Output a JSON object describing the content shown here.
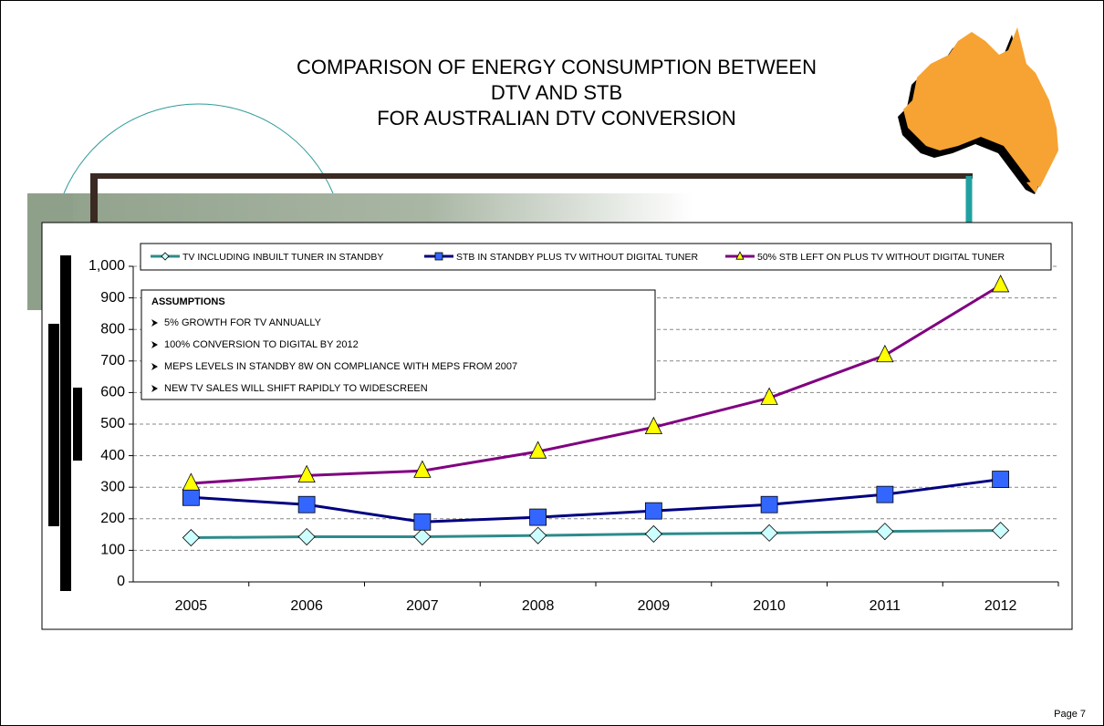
{
  "chart_data": {
    "type": "line",
    "title": [
      "COMPARISON OF ENERGY CONSUMPTION BETWEEN",
      "DTV AND STB",
      "FOR AUSTRALIAN DTV CONVERSION"
    ],
    "categories": [
      "2005",
      "2006",
      "2007",
      "2008",
      "2009",
      "2010",
      "2011",
      "2012"
    ],
    "series": [
      {
        "name": "TV INCLUDING INBUILT TUNER IN STANDBY",
        "color": "#2e8b8b",
        "marker": "diamond",
        "marker_color": "#ccffff",
        "values": [
          140,
          143,
          143,
          147,
          152,
          155,
          160,
          163
        ]
      },
      {
        "name": "STB IN STANDBY PLUS TV WITHOUT DIGITAL TUNER",
        "color": "#000080",
        "marker": "square",
        "marker_color": "#3366ff",
        "values": [
          268,
          245,
          190,
          205,
          225,
          245,
          277,
          325
        ]
      },
      {
        "name": "50% STB LEFT ON PLUS TV WITHOUT DIGITAL TUNER",
        "color": "#800080",
        "marker": "triangle",
        "marker_color": "#ffff00",
        "values": [
          312,
          337,
          352,
          413,
          490,
          583,
          718,
          940
        ]
      }
    ],
    "ylim": [
      0,
      1000
    ],
    "yticks": [
      0,
      100,
      200,
      300,
      400,
      500,
      600,
      700,
      800,
      900,
      {
        "value": 1000,
        "label": "1,000"
      }
    ],
    "grid": true,
    "assumptions": {
      "heading": "ASSUMPTIONS",
      "items": [
        "5% GROWTH FOR TV ANNUALLY",
        "100% CONVERSION TO DIGITAL BY 2012",
        "MEPS LEVELS IN STANDBY 8W ON COMPLIANCE WITH MEPS FROM 2007",
        "NEW TV SALES WILL SHIFT RAPIDLY TO WIDESCREEN"
      ]
    }
  },
  "footer": {
    "page": "Page 7"
  }
}
